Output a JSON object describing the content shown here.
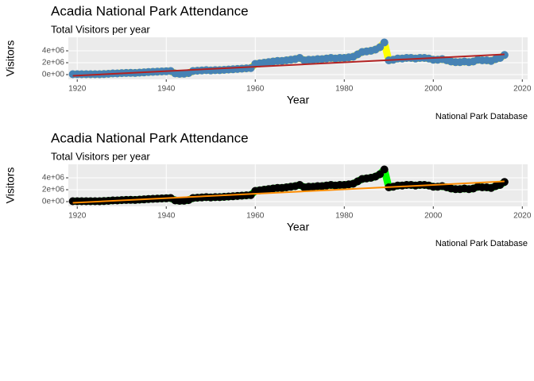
{
  "chart_data": [
    {
      "type": "line",
      "title": "Acadia National Park Attendance",
      "subtitle": "Total Visitors per year",
      "x_label": "Year",
      "y_label": "Visitors",
      "caption": "National Park Database",
      "x": [
        1919,
        1920,
        1921,
        1922,
        1923,
        1924,
        1925,
        1926,
        1927,
        1928,
        1929,
        1930,
        1931,
        1932,
        1933,
        1934,
        1935,
        1936,
        1937,
        1938,
        1939,
        1940,
        1941,
        1942,
        1943,
        1944,
        1945,
        1946,
        1947,
        1948,
        1949,
        1950,
        1951,
        1952,
        1953,
        1954,
        1955,
        1956,
        1957,
        1958,
        1959,
        1960,
        1961,
        1962,
        1963,
        1964,
        1965,
        1966,
        1967,
        1968,
        1969,
        1970,
        1971,
        1972,
        1973,
        1974,
        1975,
        1976,
        1977,
        1978,
        1979,
        1980,
        1981,
        1982,
        1983,
        1984,
        1985,
        1986,
        1987,
        1988,
        1989,
        1990,
        1991,
        1992,
        1993,
        1994,
        1995,
        1996,
        1997,
        1998,
        1999,
        2000,
        2001,
        2002,
        2003,
        2004,
        2005,
        2006,
        2007,
        2008,
        2009,
        2010,
        2011,
        2012,
        2013,
        2014,
        2015,
        2016
      ],
      "values": [
        64000,
        66500,
        69836,
        73779,
        73673,
        71758,
        73000,
        100000,
        135000,
        195000,
        200000,
        252000,
        277000,
        296000,
        280000,
        333000,
        380000,
        440000,
        460000,
        500000,
        540000,
        560000,
        600000,
        200000,
        130000,
        150000,
        250000,
        600000,
        650000,
        700000,
        750000,
        700000,
        750000,
        750000,
        800000,
        850000,
        900000,
        950000,
        1000000,
        1050000,
        1100000,
        1800000,
        1900000,
        2000000,
        2100000,
        2200000,
        2300000,
        2300000,
        2400000,
        2500000,
        2600000,
        2800000,
        2400000,
        2500000,
        2500000,
        2600000,
        2600000,
        2700000,
        2800000,
        2700000,
        2800000,
        2800000,
        2900000,
        3000000,
        3400000,
        3800000,
        3900000,
        4000000,
        4200000,
        4600000,
        5400000,
        2400000,
        2500000,
        2700000,
        2700000,
        2800000,
        2800000,
        2700000,
        2800000,
        2800000,
        2700000,
        2500000,
        2500000,
        2600000,
        2400000,
        2200000,
        2100000,
        2100000,
        2200000,
        2100000,
        2200000,
        2500000,
        2400000,
        2400000,
        2300000,
        2600000,
        2800000,
        3300000
      ],
      "line_color": "#ffff00",
      "point_color": "#4682b4",
      "trend": {
        "x": [
          1919,
          2016
        ],
        "values": [
          -200000,
          3400000
        ],
        "color": "#b22222"
      },
      "xlim": [
        1918.0,
        2021.2
      ],
      "ylim": [
        -800000,
        6270000
      ],
      "xticks": [
        1920,
        1940,
        1960,
        1980,
        2000,
        2020
      ],
      "yticks": [
        {
          "value": 0,
          "label": "0e+00"
        },
        {
          "value": 2000000,
          "label": "2e+06"
        },
        {
          "value": 4000000,
          "label": "4e+06"
        }
      ],
      "grid": true
    },
    {
      "type": "line",
      "title": "Acadia National Park Attendance",
      "subtitle": "Total Visitors per year",
      "x_label": "Year",
      "y_label": "Visitors",
      "caption": "National Park Database",
      "x": [
        1919,
        1920,
        1921,
        1922,
        1923,
        1924,
        1925,
        1926,
        1927,
        1928,
        1929,
        1930,
        1931,
        1932,
        1933,
        1934,
        1935,
        1936,
        1937,
        1938,
        1939,
        1940,
        1941,
        1942,
        1943,
        1944,
        1945,
        1946,
        1947,
        1948,
        1949,
        1950,
        1951,
        1952,
        1953,
        1954,
        1955,
        1956,
        1957,
        1958,
        1959,
        1960,
        1961,
        1962,
        1963,
        1964,
        1965,
        1966,
        1967,
        1968,
        1969,
        1970,
        1971,
        1972,
        1973,
        1974,
        1975,
        1976,
        1977,
        1978,
        1979,
        1980,
        1981,
        1982,
        1983,
        1984,
        1985,
        1986,
        1987,
        1988,
        1989,
        1990,
        1991,
        1992,
        1993,
        1994,
        1995,
        1996,
        1997,
        1998,
        1999,
        2000,
        2001,
        2002,
        2003,
        2004,
        2005,
        2006,
        2007,
        2008,
        2009,
        2010,
        2011,
        2012,
        2013,
        2014,
        2015,
        2016
      ],
      "values": [
        64000,
        66500,
        69836,
        73779,
        73673,
        71758,
        73000,
        100000,
        135000,
        195000,
        200000,
        252000,
        277000,
        296000,
        280000,
        333000,
        380000,
        440000,
        460000,
        500000,
        540000,
        560000,
        600000,
        200000,
        130000,
        150000,
        250000,
        600000,
        650000,
        700000,
        750000,
        700000,
        750000,
        750000,
        800000,
        850000,
        900000,
        950000,
        1000000,
        1050000,
        1100000,
        1800000,
        1900000,
        2000000,
        2100000,
        2200000,
        2300000,
        2300000,
        2400000,
        2500000,
        2600000,
        2800000,
        2400000,
        2500000,
        2500000,
        2600000,
        2600000,
        2700000,
        2800000,
        2700000,
        2800000,
        2800000,
        2900000,
        3000000,
        3400000,
        3800000,
        3900000,
        4000000,
        4200000,
        4600000,
        5400000,
        2400000,
        2500000,
        2700000,
        2700000,
        2800000,
        2800000,
        2700000,
        2800000,
        2800000,
        2700000,
        2500000,
        2500000,
        2600000,
        2400000,
        2200000,
        2100000,
        2100000,
        2200000,
        2100000,
        2200000,
        2500000,
        2400000,
        2400000,
        2300000,
        2600000,
        2800000,
        3300000
      ],
      "line_color": "#00ff00",
      "point_color": "#000000",
      "trend": {
        "x": [
          1919,
          2016
        ],
        "values": [
          -200000,
          3400000
        ],
        "color": "#ff8c00"
      },
      "xlim": [
        1918.0,
        2021.2
      ],
      "ylim": [
        -800000,
        6270000
      ],
      "xticks": [
        1920,
        1940,
        1960,
        1980,
        2000,
        2020
      ],
      "yticks": [
        {
          "value": 0,
          "label": "0e+00"
        },
        {
          "value": 2000000,
          "label": "2e+06"
        },
        {
          "value": 4000000,
          "label": "4e+06"
        }
      ],
      "grid": true
    }
  ]
}
